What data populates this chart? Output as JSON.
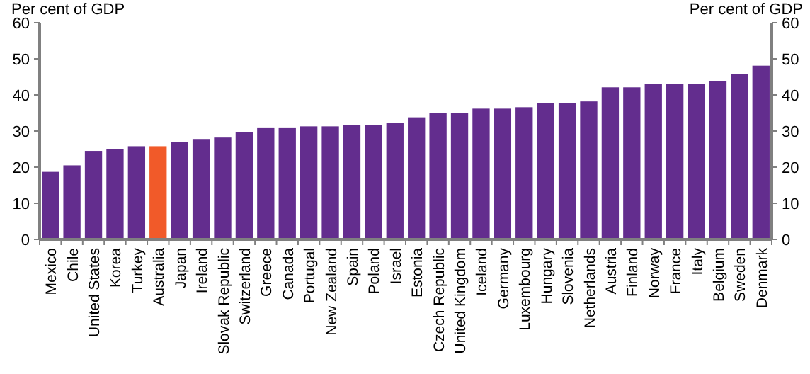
{
  "chart_data": {
    "type": "bar",
    "ylabel": "Per cent of GDP",
    "y2label": "Per cent of GDP",
    "categories": [
      "Mexico",
      "Chile",
      "United States",
      "Korea",
      "Turkey",
      "Australia",
      "Japan",
      "Ireland",
      "Slovak Republic",
      "Switzerland",
      "Greece",
      "Canada",
      "Portugal",
      "New Zealand",
      "Spain",
      "Poland",
      "Israel",
      "Estonia",
      "Czech Republic",
      "United Kingdom",
      "Iceland",
      "Germany",
      "Luxembourg",
      "Hungary",
      "Slovenia",
      "Netherlands",
      "Austria",
      "Finland",
      "Norway",
      "France",
      "Italy",
      "Belgium",
      "Sweden",
      "Denmark"
    ],
    "values": [
      18.7,
      20.5,
      24.5,
      25,
      25.8,
      25.8,
      27,
      27.8,
      28.2,
      29.7,
      31,
      31,
      31.3,
      31.3,
      31.7,
      31.7,
      32.2,
      33.8,
      35,
      35,
      36.2,
      36.2,
      36.6,
      37.8,
      37.8,
      38.2,
      42.1,
      42.1,
      43,
      43,
      43,
      43.8,
      45.7,
      48.1
    ],
    "colors": [
      "#632d8e",
      "#632d8e",
      "#632d8e",
      "#632d8e",
      "#632d8e",
      "#f15a29",
      "#632d8e",
      "#632d8e",
      "#632d8e",
      "#632d8e",
      "#632d8e",
      "#632d8e",
      "#632d8e",
      "#632d8e",
      "#632d8e",
      "#632d8e",
      "#632d8e",
      "#632d8e",
      "#632d8e",
      "#632d8e",
      "#632d8e",
      "#632d8e",
      "#632d8e",
      "#632d8e",
      "#632d8e",
      "#632d8e",
      "#632d8e",
      "#632d8e",
      "#632d8e",
      "#632d8e",
      "#632d8e",
      "#632d8e",
      "#632d8e",
      "#632d8e"
    ],
    "ylim": [
      0,
      60
    ],
    "yticks": [
      0,
      10,
      20,
      30,
      40,
      50,
      60
    ],
    "y2lim": [
      0,
      60
    ],
    "y2ticks": [
      0,
      10,
      20,
      30,
      40,
      50,
      60
    ],
    "grid": false
  }
}
